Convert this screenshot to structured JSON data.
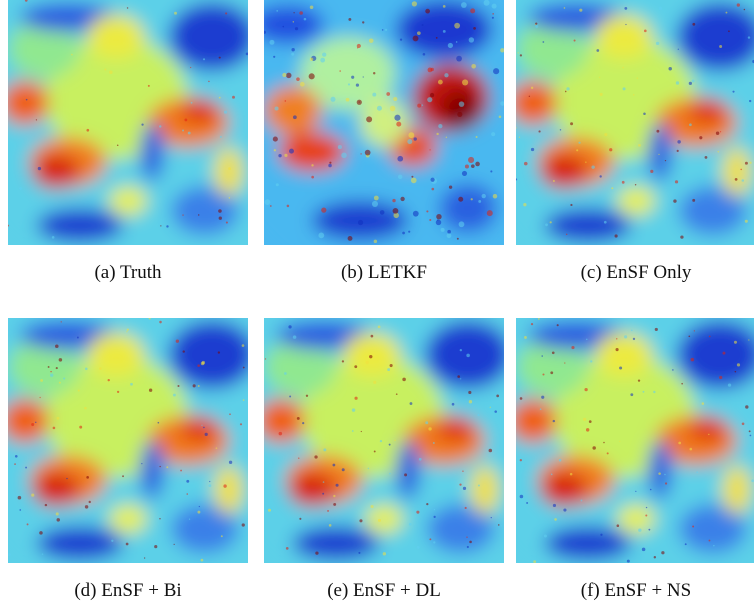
{
  "figures": [
    {
      "caption": "(a) Truth"
    },
    {
      "caption": "(b) LETKF"
    },
    {
      "caption": "(c) EnSF Only"
    },
    {
      "caption": "(d) EnSF + Bi"
    },
    {
      "caption": "(e) EnSF + DL"
    },
    {
      "caption": "(f) EnSF + NS"
    }
  ]
}
